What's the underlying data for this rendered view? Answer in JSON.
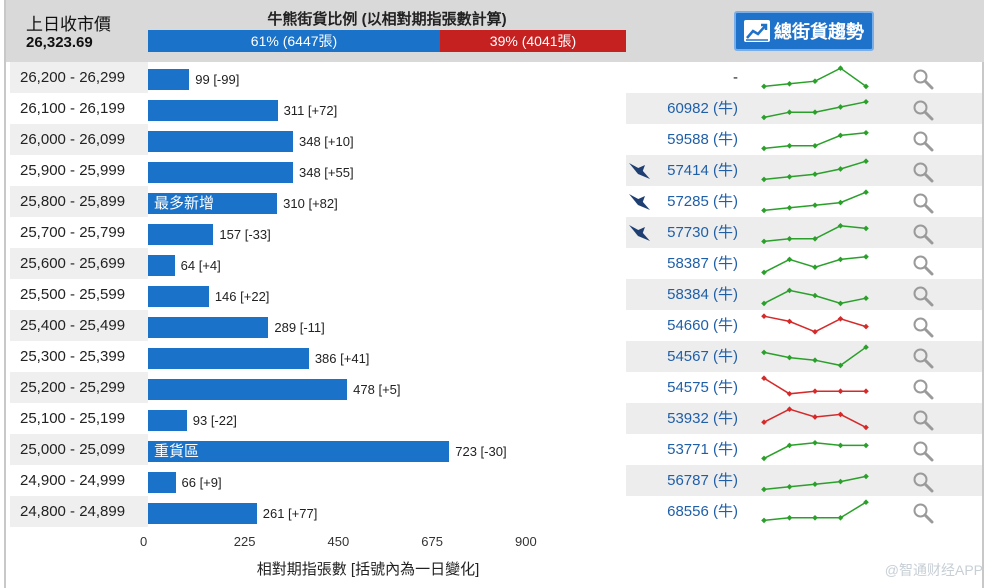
{
  "header": {
    "close_label": "上日收市價",
    "close_value": "26,323.69",
    "ratio_title": "牛熊街貨比例 (以相對期指張數計算)",
    "bull_pct": 61,
    "bull_label": "61% (6447張)",
    "bear_label": "39% (4041張)",
    "trend_button": "總街貨趨勢"
  },
  "axis": {
    "max": 900,
    "ticks": [
      "0",
      "225",
      "450",
      "675",
      "900"
    ],
    "label": "相對期指張數 [括號內為一日變化]"
  },
  "colors": {
    "bar": "#1a73c9",
    "bull_line": "#2aa02a",
    "bear_line": "#d42a2a",
    "code": "#1f5fa8"
  },
  "rows": [
    {
      "range": "26,200 - 26,299",
      "value": 99,
      "label": "99 [-99]",
      "tag": "",
      "code": "-",
      "issuer": false,
      "trend": "up",
      "spark": [
        1,
        2,
        3,
        8,
        1
      ]
    },
    {
      "range": "26,100 - 26,199",
      "value": 311,
      "label": "311 [+72]",
      "tag": "",
      "code": "60982 (牛)",
      "issuer": false,
      "trend": "up",
      "spark": [
        1,
        3,
        3,
        5,
        7
      ]
    },
    {
      "range": "26,000 - 26,099",
      "value": 348,
      "label": "348 [+10]",
      "tag": "",
      "code": "59588 (牛)",
      "issuer": false,
      "trend": "up",
      "spark": [
        1,
        2,
        2,
        6,
        7
      ]
    },
    {
      "range": "25,900 - 25,999",
      "value": 348,
      "label": "348 [+55]",
      "tag": "",
      "code": "57414 (牛)",
      "issuer": true,
      "trend": "up",
      "spark": [
        1,
        2,
        3,
        5,
        8
      ]
    },
    {
      "range": "25,800 - 25,899",
      "value": 310,
      "label": "310 [+82]",
      "tag": "最多新增",
      "code": "57285 (牛)",
      "issuer": true,
      "trend": "up",
      "spark": [
        1,
        2,
        3,
        4,
        8
      ]
    },
    {
      "range": "25,700 - 25,799",
      "value": 157,
      "label": "157 [-33]",
      "tag": "",
      "code": "57730 (牛)",
      "issuer": true,
      "trend": "up",
      "spark": [
        1,
        2,
        2,
        7,
        6
      ]
    },
    {
      "range": "25,600 - 25,699",
      "value": 64,
      "label": "64 [+4]",
      "tag": "",
      "code": "58387 (牛)",
      "issuer": false,
      "trend": "up",
      "spark": [
        1,
        6,
        3,
        6,
        7
      ]
    },
    {
      "range": "25,500 - 25,599",
      "value": 146,
      "label": "146 [+22]",
      "tag": "",
      "code": "58384 (牛)",
      "issuer": false,
      "trend": "up",
      "spark": [
        1,
        6,
        4,
        1,
        3
      ]
    },
    {
      "range": "25,400 - 25,499",
      "value": 289,
      "label": "289 [-11]",
      "tag": "",
      "code": "54660 (牛)",
      "issuer": false,
      "trend": "down",
      "spark": [
        8,
        6,
        2,
        7,
        4
      ]
    },
    {
      "range": "25,300 - 25,399",
      "value": 386,
      "label": "386 [+41]",
      "tag": "",
      "code": "54567 (牛)",
      "issuer": false,
      "trend": "up",
      "spark": [
        6,
        4,
        3,
        1,
        8
      ]
    },
    {
      "range": "25,200 - 25,299",
      "value": 478,
      "label": "478 [+5]",
      "tag": "",
      "code": "54575 (牛)",
      "issuer": false,
      "trend": "down",
      "spark": [
        8,
        2,
        3,
        3,
        3
      ]
    },
    {
      "range": "25,100 - 25,199",
      "value": 93,
      "label": "93 [-22]",
      "tag": "",
      "code": "53932 (牛)",
      "issuer": false,
      "trend": "down",
      "spark": [
        3,
        8,
        5,
        6,
        1
      ]
    },
    {
      "range": "25,000 - 25,099",
      "value": 723,
      "label": "723 [-30]",
      "tag": "重貨區",
      "code": "53771 (牛)",
      "issuer": false,
      "trend": "up",
      "spark": [
        1,
        6,
        7,
        6,
        6
      ]
    },
    {
      "range": "24,900 - 24,999",
      "value": 66,
      "label": "66 [+9]",
      "tag": "",
      "code": "56787 (牛)",
      "issuer": false,
      "trend": "up",
      "spark": [
        1,
        2,
        3,
        4,
        6
      ]
    },
    {
      "range": "24,800 - 24,899",
      "value": 261,
      "label": "261 [+77]",
      "tag": "",
      "code": "68556 (牛)",
      "issuer": false,
      "trend": "up",
      "spark": [
        1,
        2,
        2,
        2,
        8
      ]
    }
  ],
  "watermark": "@智通财经APP"
}
